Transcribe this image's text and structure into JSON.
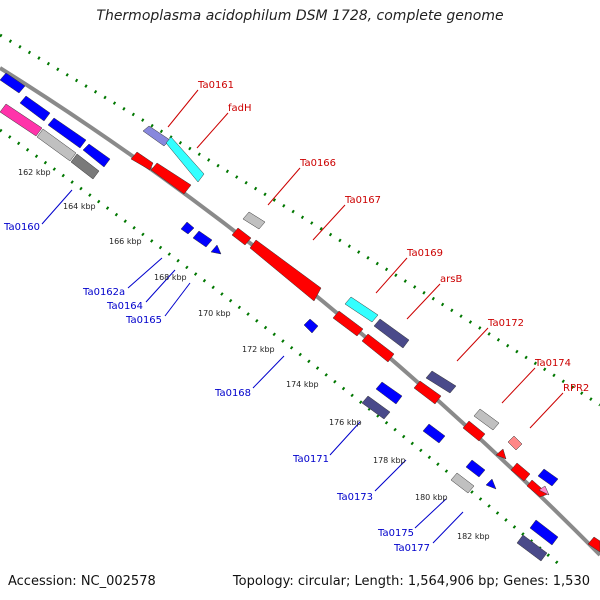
{
  "title": "Thermoplasma acidophilum DSM 1728, complete genome",
  "footer": {
    "accession": "Accession: NC_002578",
    "summary": "Topology: circular; Length: 1,564,906 bp; Genes: 1,530"
  },
  "top_labels": [
    "Ta0161",
    "fadH",
    "Ta0166",
    "Ta0167",
    "Ta0169",
    "arsB",
    "Ta0172",
    "Ta0174",
    "RPR2"
  ],
  "bottom_labels": [
    "Ta0160",
    "Ta0162a",
    "Ta0164",
    "Ta0165",
    "Ta0168",
    "Ta0171",
    "Ta0173",
    "Ta0175",
    "Ta0177"
  ],
  "kbp_labels": [
    "162 kbp",
    "164 kbp",
    "166 kbp",
    "168 kbp",
    "170 kbp",
    "172 kbp",
    "174 kbp",
    "176 kbp",
    "178 kbp",
    "180 kbp",
    "182 kbp"
  ],
  "colors": {
    "forward_gene": "#ff0000",
    "reverse_gene": "#0000ff",
    "hypothetical": "#c0c0c0",
    "dark_gene": "#4a4a8a",
    "cyan_gene": "#33ffff",
    "rna_gene": "#ff8888",
    "magenta_gene": "#ff33aa",
    "backbone": "#8a8a8a",
    "tick": "#007700"
  }
}
